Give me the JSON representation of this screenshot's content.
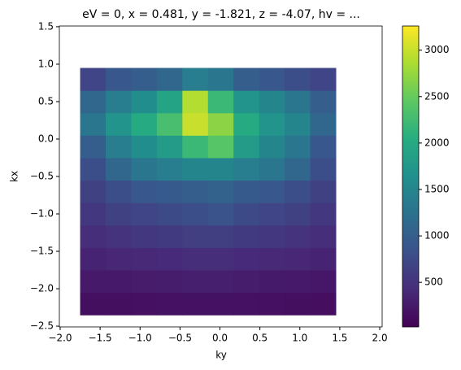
{
  "chart_data": {
    "type": "heatmap",
    "title": "eV = 0, x = 0.481, y = -1.821, z = -4.07, hv = ...",
    "x_label": "ky",
    "y_label": "kx",
    "colormap": "viridis",
    "x_edges": [
      -1.75,
      -1.43,
      -1.11,
      -0.79,
      -0.47,
      -0.15,
      0.17,
      0.49,
      0.81,
      1.13,
      1.45
    ],
    "y_edges": [
      -2.35,
      -2.05,
      -1.75,
      -1.45,
      -1.15,
      -0.85,
      -0.55,
      -0.25,
      0.05,
      0.35,
      0.65,
      0.95
    ],
    "z": [
      [
        150,
        150,
        160,
        170,
        180,
        180,
        170,
        160,
        150,
        140
      ],
      [
        250,
        250,
        270,
        280,
        300,
        300,
        280,
        260,
        250,
        230
      ],
      [
        350,
        380,
        400,
        420,
        450,
        450,
        420,
        400,
        380,
        350
      ],
      [
        450,
        500,
        550,
        580,
        620,
        620,
        580,
        550,
        500,
        450
      ],
      [
        550,
        650,
        700,
        750,
        800,
        850,
        750,
        700,
        650,
        550
      ],
      [
        650,
        800,
        900,
        950,
        1000,
        1050,
        950,
        900,
        800,
        650
      ],
      [
        800,
        1100,
        1300,
        1400,
        1500,
        1500,
        1400,
        1300,
        1100,
        800
      ],
      [
        1000,
        1400,
        1600,
        1800,
        2200,
        2400,
        1800,
        1500,
        1300,
        900
      ],
      [
        1300,
        1700,
        2000,
        2300,
        3000,
        2700,
        2000,
        1700,
        1500,
        1100
      ],
      [
        1100,
        1400,
        1600,
        1900,
        2900,
        2200,
        1700,
        1500,
        1300,
        1000
      ],
      [
        700,
        900,
        1000,
        1100,
        1400,
        1300,
        1000,
        900,
        800,
        700
      ]
    ],
    "xlim": [
      -2.01,
      2.03
    ],
    "ylim": [
      -2.51,
      1.51
    ],
    "clim": [
      20,
      3260
    ],
    "xticks": [
      {
        "value": -2.0,
        "label": "−2.0"
      },
      {
        "value": -1.5,
        "label": "−1.5"
      },
      {
        "value": -1.0,
        "label": "−1.0"
      },
      {
        "value": -0.5,
        "label": "−0.5"
      },
      {
        "value": 0.0,
        "label": "0.0"
      },
      {
        "value": 0.5,
        "label": "0.5"
      },
      {
        "value": 1.0,
        "label": "1.0"
      },
      {
        "value": 1.5,
        "label": "1.5"
      },
      {
        "value": 2.0,
        "label": "2.0"
      }
    ],
    "yticks": [
      {
        "value": -2.5,
        "label": "−2.5"
      },
      {
        "value": -2.0,
        "label": "−2.0"
      },
      {
        "value": -1.5,
        "label": "−1.5"
      },
      {
        "value": -1.0,
        "label": "−1.0"
      },
      {
        "value": -0.5,
        "label": "−0.5"
      },
      {
        "value": 0.0,
        "label": "0.0"
      },
      {
        "value": 0.5,
        "label": "0.5"
      },
      {
        "value": 1.0,
        "label": "1.0"
      },
      {
        "value": 1.5,
        "label": "1.5"
      }
    ],
    "cticks": [
      500,
      1000,
      1500,
      2000,
      2500,
      3000
    ]
  }
}
